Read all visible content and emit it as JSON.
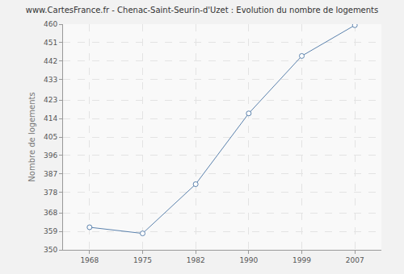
{
  "chart_data": {
    "type": "line",
    "title": "www.CartesFrance.fr - Chenac-Saint-Seurin-d'Uzet : Evolution du nombre de logements",
    "y_label": "Nombre de logements",
    "categories": [
      "1968",
      "1975",
      "1982",
      "1990",
      "1999",
      "2007"
    ],
    "values": [
      361,
      358,
      382,
      416.5,
      444.5,
      459.5
    ],
    "color": "#5b82ad",
    "marker": "circle",
    "ylim": [
      350,
      460
    ],
    "yticks": [
      350,
      359,
      368,
      378,
      387,
      396,
      405,
      414,
      423,
      433,
      442,
      451,
      460
    ],
    "grid": true
  }
}
